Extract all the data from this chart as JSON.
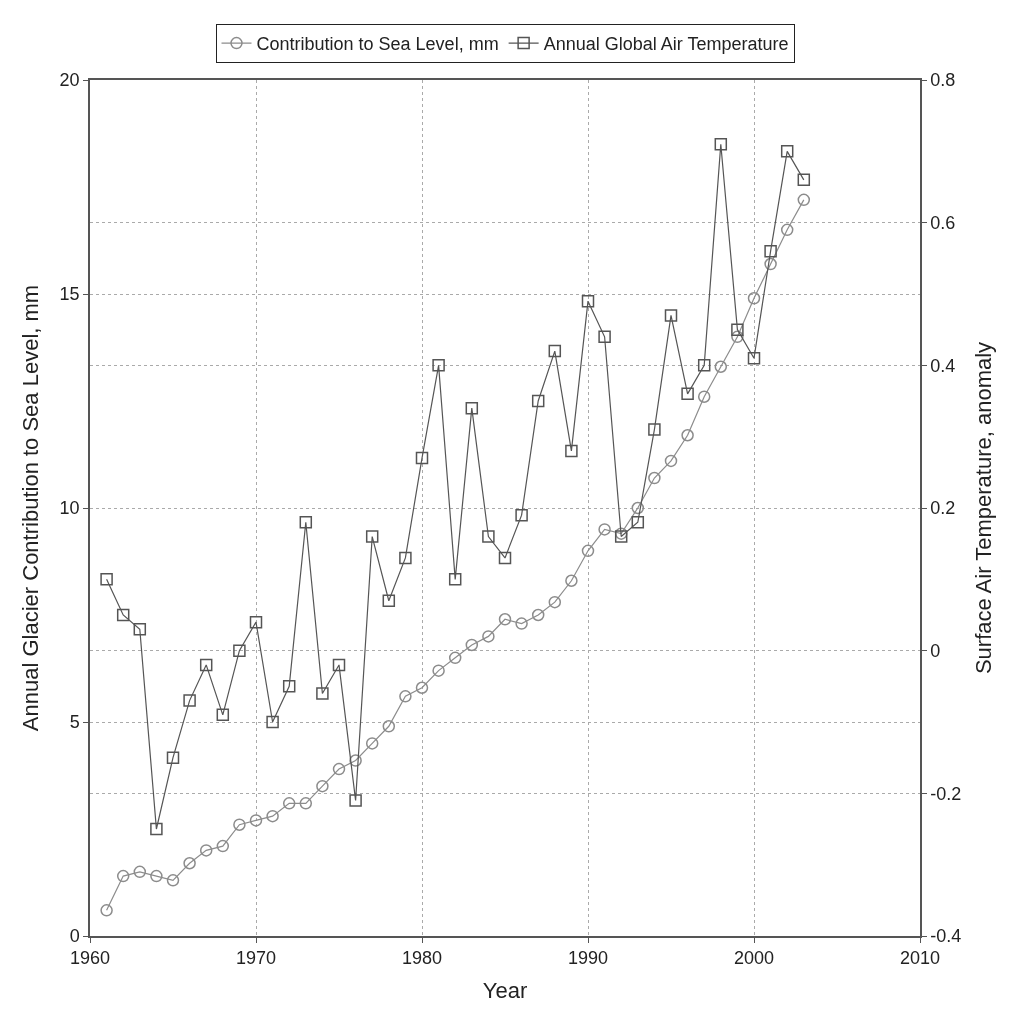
{
  "chart_data": {
    "type": "line",
    "xlabel": "Year",
    "ylabel": "Annual Glacier Contribution to Sea Level, mm",
    "y2label": "Surface Air Temperature, anomaly",
    "x": [
      1961,
      1962,
      1963,
      1964,
      1965,
      1966,
      1967,
      1968,
      1969,
      1970,
      1971,
      1972,
      1973,
      1974,
      1975,
      1976,
      1977,
      1978,
      1979,
      1980,
      1981,
      1982,
      1983,
      1984,
      1985,
      1986,
      1987,
      1988,
      1989,
      1990,
      1991,
      1992,
      1993,
      1994,
      1995,
      1996,
      1997,
      1998,
      1999,
      2000,
      2001,
      2002,
      2003
    ],
    "series": [
      {
        "name": "Contribution to Sea Level, mm",
        "color": "#8c8c8c",
        "marker": "circle",
        "values": [
          0.6,
          1.4,
          1.5,
          1.4,
          1.3,
          1.7,
          2.0,
          2.1,
          2.6,
          2.7,
          2.8,
          3.1,
          3.1,
          3.5,
          3.9,
          4.1,
          4.5,
          4.9,
          5.6,
          5.8,
          6.2,
          6.5,
          6.8,
          7.0,
          7.4,
          7.3,
          7.5,
          7.8,
          8.3,
          9.0,
          9.5,
          9.4,
          10.0,
          10.7,
          11.1,
          11.7,
          12.6,
          13.3,
          14.0,
          14.9,
          15.7,
          16.5,
          17.2
        ]
      },
      {
        "name": "Annual Global Air Temperature",
        "color": "#555555",
        "marker": "square",
        "axis": "y2",
        "values": [
          0.1,
          0.05,
          0.03,
          -0.25,
          -0.15,
          -0.07,
          -0.02,
          -0.09,
          0.0,
          0.04,
          -0.1,
          -0.05,
          0.18,
          -0.06,
          -0.02,
          -0.21,
          0.16,
          0.07,
          0.13,
          0.27,
          0.4,
          0.1,
          0.34,
          0.16,
          0.13,
          0.19,
          0.35,
          0.42,
          0.28,
          0.49,
          0.44,
          0.16,
          0.18,
          0.31,
          0.47,
          0.36,
          0.4,
          0.71,
          0.45,
          0.41,
          0.56,
          0.7,
          0.66
        ]
      }
    ],
    "xlim": [
      1960,
      2010
    ],
    "xticks": [
      1960,
      1970,
      1980,
      1990,
      2000,
      2010
    ],
    "ylim": [
      0,
      20
    ],
    "yticks": [
      0,
      5,
      10,
      15,
      20
    ],
    "y2lim": [
      -0.4,
      0.8
    ],
    "y2ticks": [
      -0.4,
      -0.2,
      0,
      0.2,
      0.4,
      0.6,
      0.8
    ],
    "grid": true,
    "legend": "top"
  }
}
